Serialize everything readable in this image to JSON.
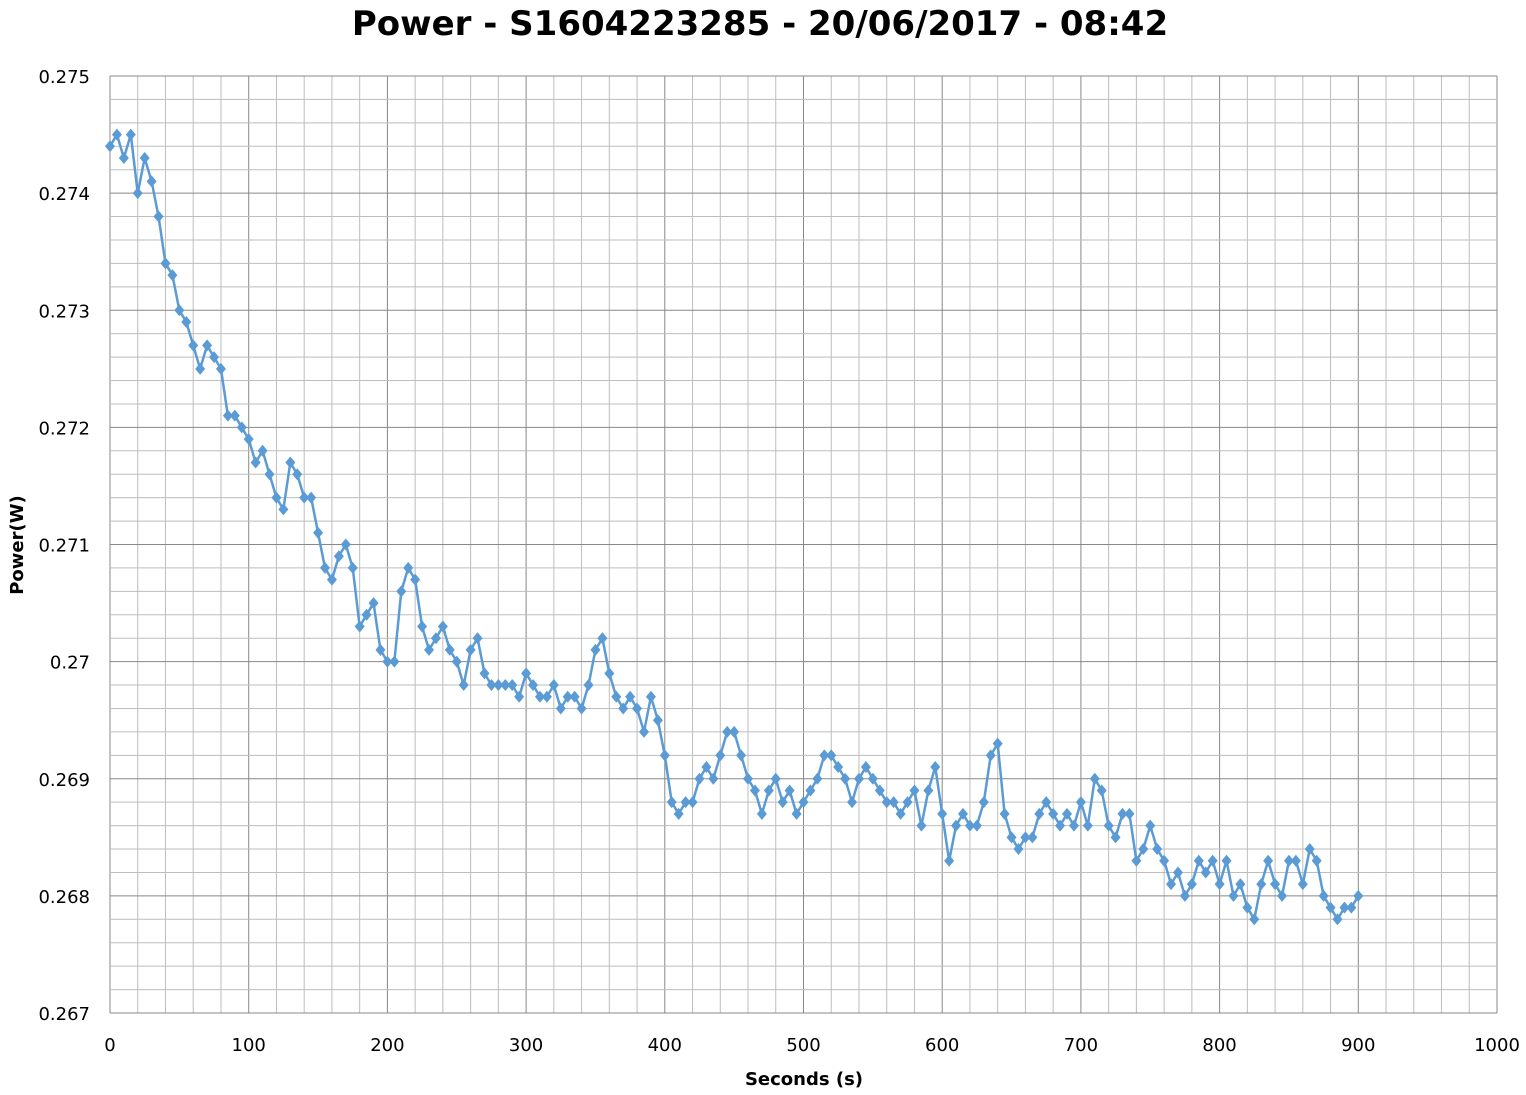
{
  "chart_data": {
    "type": "line",
    "title": "Power - S1604223285 - 20/06/2017 - 08:42",
    "xlabel": "Seconds (s)",
    "ylabel": "Power(W)",
    "xlim": [
      0,
      1000
    ],
    "ylim": [
      0.267,
      0.275
    ],
    "x_ticks": [
      "0",
      "100",
      "200",
      "300",
      "400",
      "500",
      "600",
      "700",
      "800",
      "900",
      "1000"
    ],
    "y_ticks": [
      "0.267",
      "0.268",
      "0.269",
      "0.27",
      "0.271",
      "0.272",
      "0.273",
      "0.274",
      "0.275"
    ],
    "grid": true,
    "legend": "none",
    "marker": "diamond",
    "series_color": "#5B9BD5",
    "series": [
      {
        "x_start": 0,
        "x_step": 5,
        "values": [
          0.2744,
          0.2745,
          0.2743,
          0.2745,
          0.274,
          0.2743,
          0.2741,
          0.2738,
          0.2734,
          0.2733,
          0.273,
          0.2729,
          0.2727,
          0.2725,
          0.2727,
          0.2726,
          0.2725,
          0.2721,
          0.2721,
          0.272,
          0.2719,
          0.2717,
          0.2718,
          0.2716,
          0.2714,
          0.2713,
          0.2717,
          0.2716,
          0.2714,
          0.2714,
          0.2711,
          0.2708,
          0.2707,
          0.2709,
          0.271,
          0.2708,
          0.2703,
          0.2704,
          0.2705,
          0.2701,
          0.27,
          0.27,
          0.2706,
          0.2708,
          0.2707,
          0.2703,
          0.2701,
          0.2702,
          0.2703,
          0.2701,
          0.27,
          0.2698,
          0.2701,
          0.2702,
          0.2699,
          0.2698,
          0.2698,
          0.2698,
          0.2698,
          0.2697,
          0.2699,
          0.2698,
          0.2697,
          0.2697,
          0.2698,
          0.2696,
          0.2697,
          0.2697,
          0.2696,
          0.2698,
          0.2701,
          0.2702,
          0.2699,
          0.2697,
          0.2696,
          0.2697,
          0.2696,
          0.2694,
          0.2697,
          0.2695,
          0.2692,
          0.2688,
          0.2687,
          0.2688,
          0.2688,
          0.269,
          0.2691,
          0.269,
          0.2692,
          0.2694,
          0.2694,
          0.2692,
          0.269,
          0.2689,
          0.2687,
          0.2689,
          0.269,
          0.2688,
          0.2689,
          0.2687,
          0.2688,
          0.2689,
          0.269,
          0.2692,
          0.2692,
          0.2691,
          0.269,
          0.2688,
          0.269,
          0.2691,
          0.269,
          0.2689,
          0.2688,
          0.2688,
          0.2687,
          0.2688,
          0.2689,
          0.2686,
          0.2689,
          0.2691,
          0.2687,
          0.2683,
          0.2686,
          0.2687,
          0.2686,
          0.2686,
          0.2688,
          0.2692,
          0.2693,
          0.2687,
          0.2685,
          0.2684,
          0.2685,
          0.2685,
          0.2687,
          0.2688,
          0.2687,
          0.2686,
          0.2687,
          0.2686,
          0.2688,
          0.2686,
          0.269,
          0.2689,
          0.2686,
          0.2685,
          0.2687,
          0.2687,
          0.2683,
          0.2684,
          0.2686,
          0.2684,
          0.2683,
          0.2681,
          0.2682,
          0.268,
          0.2681,
          0.2683,
          0.2682,
          0.2683,
          0.2681,
          0.2683,
          0.268,
          0.2681,
          0.2679,
          0.2678,
          0.2681,
          0.2683,
          0.2681,
          0.268,
          0.2683,
          0.2683,
          0.2681,
          0.2684,
          0.2683,
          0.268,
          0.2679,
          0.2678,
          0.2679,
          0.2679,
          0.268
        ]
      }
    ]
  }
}
